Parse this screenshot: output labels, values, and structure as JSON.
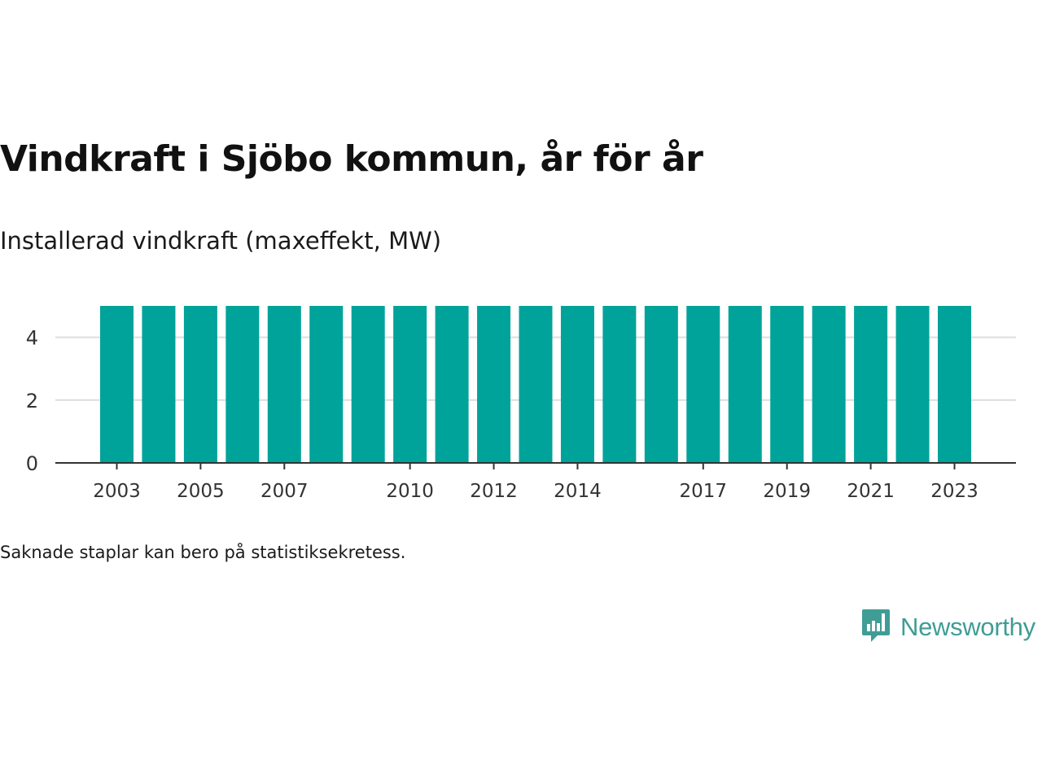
{
  "title": "Vindkraft i Sjöbo kommun, år för år",
  "subtitle": "Installerad vindkraft (maxeffekt, MW)",
  "note": "Saknade staplar kan bero på statistiksekretess.",
  "brand": {
    "name": "Newsworthy",
    "logo_icon": "bar-chart-speech-bubble-icon",
    "color": "#3f9d95"
  },
  "colors": {
    "bar": "#00a39a",
    "gridline": "#dddddd",
    "axis": "#333333"
  },
  "chart_data": {
    "type": "bar",
    "categories": [
      "2003",
      "2004",
      "2005",
      "2006",
      "2007",
      "2008",
      "2009",
      "2010",
      "2011",
      "2012",
      "2013",
      "2014",
      "2015",
      "2016",
      "2017",
      "2018",
      "2019",
      "2020",
      "2021",
      "2022",
      "2023"
    ],
    "x_tick_labels": [
      "2003",
      "2005",
      "2007",
      "2010",
      "2012",
      "2014",
      "2017",
      "2019",
      "2021",
      "2023"
    ],
    "y_ticks": [
      0,
      2,
      4
    ],
    "values": [
      5,
      5,
      5,
      5,
      5,
      5,
      5,
      5,
      5,
      5,
      5,
      5,
      5,
      5,
      5,
      5,
      5,
      5,
      5,
      5,
      5
    ],
    "ylim": [
      0,
      5
    ],
    "grid": true
  }
}
